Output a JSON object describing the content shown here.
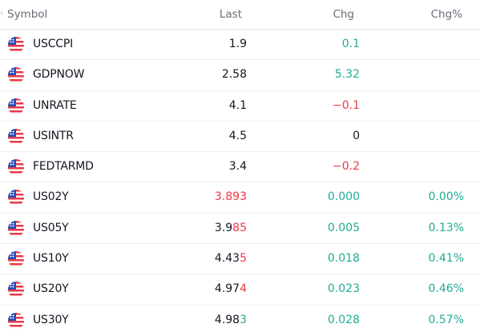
{
  "header": {
    "symbol": "Symbol",
    "last": "Last",
    "chg": "Chg",
    "chg_pct": "Chg%"
  },
  "colors": {
    "positive": "#22ab94",
    "negative": "#f23645",
    "neutral": "#131722",
    "header": "#6a6d78"
  },
  "rows": [
    {
      "symbol": "USCCPI",
      "last_plain": "1.9",
      "last_hl": "",
      "last_hl_tone": "",
      "last_tone": "neu",
      "chg": "0.1",
      "chg_tone": "pos",
      "chg_pct": "",
      "chg_pct_tone": ""
    },
    {
      "symbol": "GDPNOW",
      "last_plain": "2.58",
      "last_hl": "",
      "last_hl_tone": "",
      "last_tone": "neu",
      "chg": "5.32",
      "chg_tone": "pos",
      "chg_pct": "",
      "chg_pct_tone": ""
    },
    {
      "symbol": "UNRATE",
      "last_plain": "4.1",
      "last_hl": "",
      "last_hl_tone": "",
      "last_tone": "neu",
      "chg": "−0.1",
      "chg_tone": "neg",
      "chg_pct": "",
      "chg_pct_tone": ""
    },
    {
      "symbol": "USINTR",
      "last_plain": "4.5",
      "last_hl": "",
      "last_hl_tone": "",
      "last_tone": "neu",
      "chg": "0",
      "chg_tone": "neu",
      "chg_pct": "",
      "chg_pct_tone": ""
    },
    {
      "symbol": "FEDTARMD",
      "last_plain": "3.4",
      "last_hl": "",
      "last_hl_tone": "",
      "last_tone": "neu",
      "chg": "−0.2",
      "chg_tone": "neg",
      "chg_pct": "",
      "chg_pct_tone": ""
    },
    {
      "symbol": "US02Y",
      "last_plain": "",
      "last_hl": "3.893",
      "last_hl_tone": "neg",
      "last_tone": "neu",
      "chg": "0.000",
      "chg_tone": "pos",
      "chg_pct": "0.00%",
      "chg_pct_tone": "pos"
    },
    {
      "symbol": "US05Y",
      "last_plain": "3.9",
      "last_hl": "85",
      "last_hl_tone": "neg",
      "last_tone": "neu",
      "chg": "0.005",
      "chg_tone": "pos",
      "chg_pct": "0.13%",
      "chg_pct_tone": "pos"
    },
    {
      "symbol": "US10Y",
      "last_plain": "4.43",
      "last_hl": "5",
      "last_hl_tone": "neg",
      "last_tone": "neu",
      "chg": "0.018",
      "chg_tone": "pos",
      "chg_pct": "0.41%",
      "chg_pct_tone": "pos"
    },
    {
      "symbol": "US20Y",
      "last_plain": "4.97",
      "last_hl": "4",
      "last_hl_tone": "neg",
      "last_tone": "neu",
      "chg": "0.023",
      "chg_tone": "pos",
      "chg_pct": "0.46%",
      "chg_pct_tone": "pos"
    },
    {
      "symbol": "US30Y",
      "last_plain": "4.98",
      "last_hl": "3",
      "last_hl_tone": "pos",
      "last_tone": "neu",
      "chg": "0.028",
      "chg_tone": "pos",
      "chg_pct": "0.57%",
      "chg_pct_tone": "pos"
    }
  ]
}
